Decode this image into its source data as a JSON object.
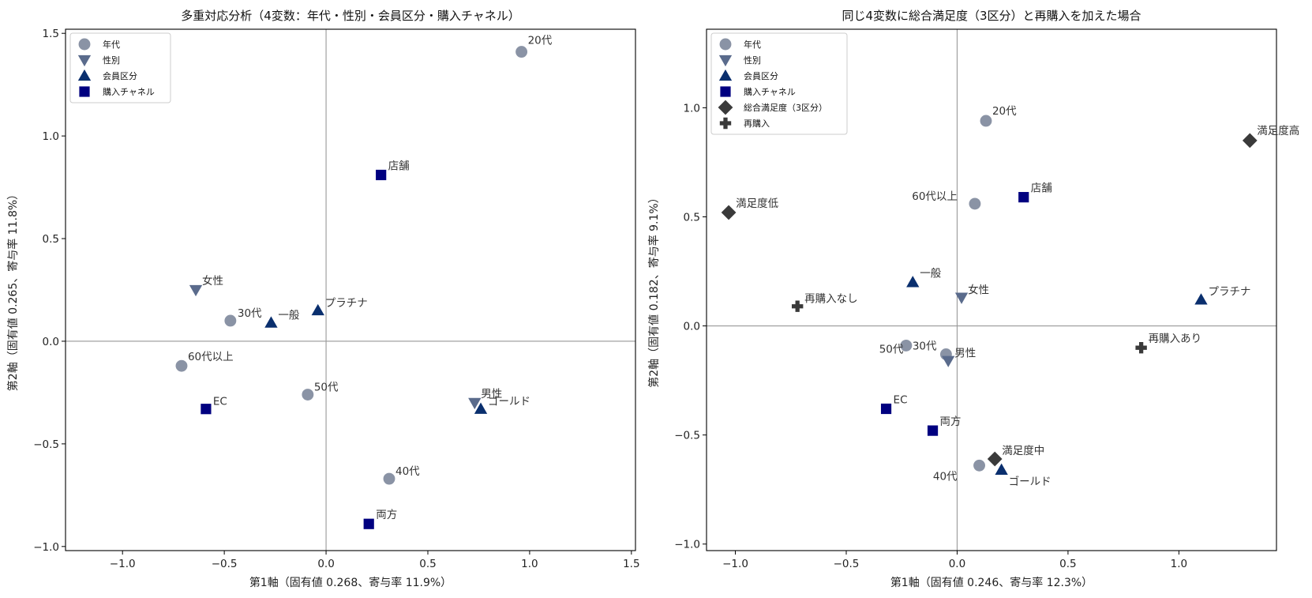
{
  "chart_data": [
    {
      "type": "scatter",
      "title": "多重対応分析（4変数：年代・性別・会員区分・購入チャネル）",
      "xlabel": "第1軸（固有値 0.268、寄与率 11.9%）",
      "ylabel": "第2軸（固有値 0.265、寄与率 11.8%）",
      "xlim": [
        -1.28,
        1.52
      ],
      "ylim": [
        -1.02,
        1.52
      ],
      "xticks": [
        -1.0,
        -0.5,
        0.0,
        0.5,
        1.0,
        1.5
      ],
      "xtick_labels": [
        "−1.0",
        "−0.5",
        "0.0",
        "0.5",
        "1.0",
        "1.5"
      ],
      "yticks": [
        -1.0,
        -0.5,
        0.0,
        0.5,
        1.0,
        1.5
      ],
      "ytick_labels": [
        "−1.0",
        "−0.5",
        "0.0",
        "0.5",
        "1.0",
        "1.5"
      ],
      "legend_position": "top-left",
      "series": [
        {
          "name": "年代",
          "marker": "circle",
          "color": "#8a93a5",
          "points": [
            {
              "label": "20代",
              "x": 0.96,
              "y": 1.41
            },
            {
              "label": "30代",
              "x": -0.47,
              "y": 0.1
            },
            {
              "label": "40代",
              "x": 0.31,
              "y": -0.67
            },
            {
              "label": "50代",
              "x": -0.09,
              "y": -0.26
            },
            {
              "label": "60代以上",
              "x": -0.71,
              "y": -0.12
            }
          ]
        },
        {
          "name": "性別",
          "marker": "triangle-down",
          "color": "#5a6b8c",
          "points": [
            {
              "label": "女性",
              "x": -0.64,
              "y": 0.25
            },
            {
              "label": "男性",
              "x": 0.73,
              "y": -0.3
            }
          ]
        },
        {
          "name": "会員区分",
          "marker": "triangle-up",
          "color": "#0a2f6e",
          "points": [
            {
              "label": "一般",
              "x": -0.27,
              "y": 0.09
            },
            {
              "label": "プラチナ",
              "x": -0.04,
              "y": 0.15
            },
            {
              "label": "ゴールド",
              "x": 0.76,
              "y": -0.33
            }
          ]
        },
        {
          "name": "購入チャネル",
          "marker": "square",
          "color": "#000080",
          "points": [
            {
              "label": "店舗",
              "x": 0.27,
              "y": 0.81
            },
            {
              "label": "EC",
              "x": -0.59,
              "y": -0.33
            },
            {
              "label": "両方",
              "x": 0.21,
              "y": -0.89
            }
          ]
        }
      ]
    },
    {
      "type": "scatter",
      "title": "同じ4変数に総合満足度（3区分）と再購入を加えた場合",
      "xlabel": "第1軸（固有値 0.246、寄与率 12.3%）",
      "ylabel": "第2軸（固有値 0.182、寄与率 9.1%）",
      "xlim": [
        -1.13,
        1.44
      ],
      "ylim": [
        -1.03,
        1.36
      ],
      "xticks": [
        -1.0,
        -0.5,
        0.0,
        0.5,
        1.0
      ],
      "xtick_labels": [
        "−1.0",
        "−0.5",
        "0.0",
        "0.5",
        "1.0"
      ],
      "yticks": [
        -1.0,
        -0.5,
        0.0,
        0.5,
        1.0
      ],
      "ytick_labels": [
        "−1.0",
        "−0.5",
        "0.0",
        "0.5",
        "1.0"
      ],
      "legend_position": "top-left",
      "series": [
        {
          "name": "年代",
          "marker": "circle",
          "color": "#8a93a5",
          "points": [
            {
              "label": "20代",
              "x": 0.13,
              "y": 0.94
            },
            {
              "label": "30代",
              "x": -0.23,
              "y": -0.09
            },
            {
              "label": "40代",
              "x": 0.1,
              "y": -0.64
            },
            {
              "label": "50代",
              "x": -0.05,
              "y": -0.13
            },
            {
              "label": "60代以上",
              "x": 0.08,
              "y": 0.56
            }
          ]
        },
        {
          "name": "性別",
          "marker": "triangle-down",
          "color": "#5a6b8c",
          "points": [
            {
              "label": "女性",
              "x": 0.02,
              "y": 0.13
            },
            {
              "label": "男性",
              "x": -0.04,
              "y": -0.16
            }
          ]
        },
        {
          "name": "会員区分",
          "marker": "triangle-up",
          "color": "#0a2f6e",
          "points": [
            {
              "label": "一般",
              "x": -0.2,
              "y": 0.2
            },
            {
              "label": "プラチナ",
              "x": 1.1,
              "y": 0.12
            },
            {
              "label": "ゴールド",
              "x": 0.2,
              "y": -0.66
            }
          ]
        },
        {
          "name": "購入チャネル",
          "marker": "square",
          "color": "#000080",
          "points": [
            {
              "label": "店舗",
              "x": 0.3,
              "y": 0.59
            },
            {
              "label": "EC",
              "x": -0.32,
              "y": -0.38
            },
            {
              "label": "両方",
              "x": -0.11,
              "y": -0.48
            }
          ]
        },
        {
          "name": "総合満足度（3区分）",
          "marker": "diamond",
          "color": "#3a3a3a",
          "points": [
            {
              "label": "満足度高",
              "x": 1.32,
              "y": 0.85
            },
            {
              "label": "満足度低",
              "x": -1.03,
              "y": 0.52
            },
            {
              "label": "満足度中",
              "x": 0.17,
              "y": -0.61
            }
          ]
        },
        {
          "name": "再購入",
          "marker": "plus",
          "color": "#3a3a3a",
          "points": [
            {
              "label": "再購入なし",
              "x": -0.72,
              "y": 0.09
            },
            {
              "label": "再購入あり",
              "x": 0.83,
              "y": -0.1
            }
          ]
        }
      ]
    }
  ]
}
